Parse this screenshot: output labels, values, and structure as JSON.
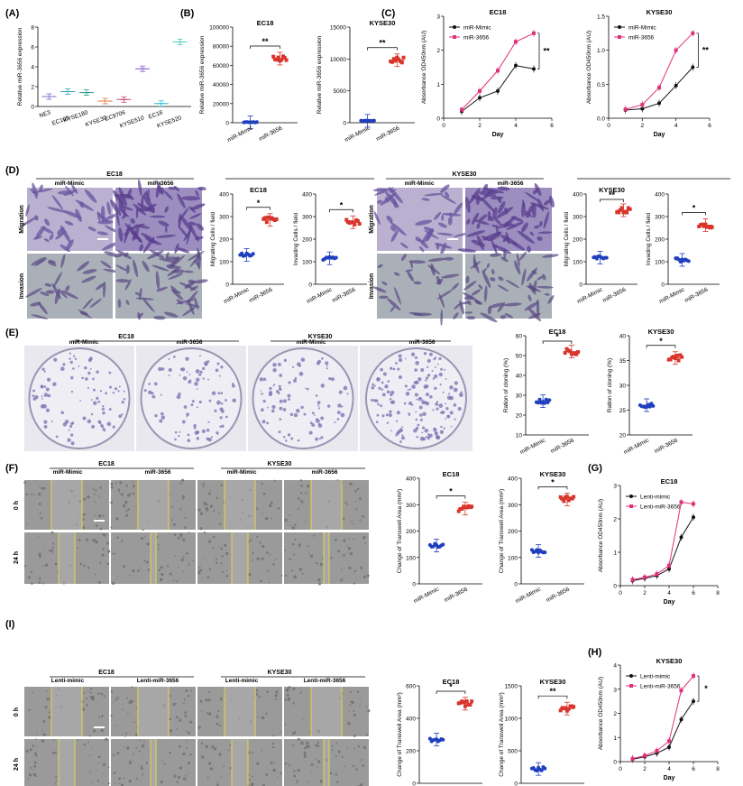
{
  "panel_letters": [
    "(A)",
    "(B)",
    "(C)",
    "(D)",
    "(E)",
    "(F)",
    "(G)",
    "(I)",
    "(H)"
  ],
  "labels": {
    "group_mimic": "miR-Mimic",
    "group_mir": "miR-3656",
    "lenti_mimic": "Lenti-mimic",
    "lenti_mir": "Lenti-miR-3656",
    "migration": "Migration",
    "invasion": "Invasion",
    "t0": "0 h",
    "t24": "24 h",
    "ec18": "EC18",
    "kyse30": "KYSE30"
  },
  "chart_data": [
    {
      "id": "A",
      "type": "scatter",
      "title": "",
      "xlabel": "",
      "ylabel": "Relative miR-3656 expression",
      "categories": [
        "NE3",
        "EC109",
        "KYSE180",
        "KYSE30",
        "EC9706",
        "KYSE510",
        "EC18",
        "KYSE520"
      ],
      "values": [
        1.0,
        1.5,
        1.4,
        0.55,
        0.7,
        3.8,
        0.3,
        6.5
      ],
      "colors": [
        "#7b68c9",
        "#2aa7b5",
        "#2e9a8c",
        "#e07a3c",
        "#c24b6d",
        "#8a5cc7",
        "#2fbfd8",
        "#45c9c0"
      ],
      "ylim": [
        0,
        8
      ],
      "yticks": [
        0,
        2,
        4,
        6,
        8
      ]
    },
    {
      "id": "B1",
      "type": "scatter",
      "title": "EC18",
      "xlabel": "",
      "ylabel": "Relative miR-3656 expression",
      "categories": [
        "miR-Mimic",
        "miR-3656"
      ],
      "values": [
        500,
        67000
      ],
      "ylim": [
        0,
        100000
      ],
      "yticks": [
        0,
        20000,
        40000,
        60000,
        80000,
        100000
      ],
      "significance": "**"
    },
    {
      "id": "B2",
      "type": "scatter",
      "title": "KYSE30",
      "xlabel": "",
      "ylabel": "Relative miR-3656 expression",
      "categories": [
        "miR-Mimic",
        "miR-3656"
      ],
      "values": [
        300,
        9800
      ],
      "ylim": [
        0,
        15000
      ],
      "yticks": [
        0,
        5000,
        10000,
        15000
      ],
      "significance": "**"
    },
    {
      "id": "C1",
      "type": "line",
      "title": "EC18",
      "xlabel": "Day",
      "ylabel": "Absorbance OD450nm (AU)",
      "x": [
        1,
        2,
        3,
        4,
        5
      ],
      "xlim": [
        0,
        6
      ],
      "xticks": [
        0,
        2,
        4,
        6
      ],
      "ylim": [
        0,
        3
      ],
      "yticks": [
        0,
        1,
        2,
        3
      ],
      "series": [
        {
          "name": "miR-Mimic",
          "values": [
            0.2,
            0.6,
            0.8,
            1.55,
            1.45
          ]
        },
        {
          "name": "miR-3656",
          "values": [
            0.25,
            0.8,
            1.4,
            2.25,
            2.5
          ]
        }
      ],
      "significance": "**",
      "legend": "top-left"
    },
    {
      "id": "C2",
      "type": "line",
      "title": "KYSE30",
      "xlabel": "Day",
      "ylabel": "Absorbance OD450nm (AU)",
      "x": [
        1,
        2,
        3,
        4,
        5
      ],
      "xlim": [
        0,
        6
      ],
      "xticks": [
        0,
        2,
        4,
        6
      ],
      "ylim": [
        0,
        1.5
      ],
      "yticks": [
        0.0,
        0.5,
        1.0,
        1.5
      ],
      "series": [
        {
          "name": "miR-Mimic",
          "values": [
            0.12,
            0.14,
            0.22,
            0.48,
            0.75
          ]
        },
        {
          "name": "miR-3656",
          "values": [
            0.13,
            0.2,
            0.45,
            1.0,
            1.25
          ]
        }
      ],
      "significance": "**",
      "legend": "top-left"
    },
    {
      "id": "D1",
      "type": "scatter",
      "title": "EC18",
      "xlabel": "",
      "ylabel": "Migrating Cells / field",
      "categories": [
        "miR-Mimic",
        "miR-3656"
      ],
      "values": [
        130,
        285
      ],
      "ylim": [
        0,
        400
      ],
      "yticks": [
        0,
        100,
        200,
        300,
        400
      ],
      "significance": "*"
    },
    {
      "id": "D2",
      "type": "scatter",
      "title": "",
      "xlabel": "",
      "ylabel": "Invading Cells / field",
      "categories": [
        "miR-Mimic",
        "miR-3656"
      ],
      "values": [
        115,
        275
      ],
      "ylim": [
        0,
        400
      ],
      "yticks": [
        0,
        100,
        200,
        300,
        400
      ],
      "significance": "*"
    },
    {
      "id": "D3",
      "type": "scatter",
      "title": "KYSE30",
      "xlabel": "",
      "ylabel": "Migrating Cells / field",
      "categories": [
        "miR-Mimic",
        "miR-3656"
      ],
      "values": [
        118,
        328
      ],
      "ylim": [
        0,
        400
      ],
      "yticks": [
        0,
        100,
        200,
        300,
        400
      ],
      "significance": "**"
    },
    {
      "id": "D4",
      "type": "scatter",
      "title": "",
      "xlabel": "",
      "ylabel": "Invading Cells / field",
      "categories": [
        "miR-Mimic",
        "miR-3656"
      ],
      "values": [
        108,
        262
      ],
      "ylim": [
        0,
        400
      ],
      "yticks": [
        0,
        100,
        200,
        300,
        400
      ],
      "significance": "*"
    },
    {
      "id": "E1",
      "type": "scatter",
      "title": "EC18",
      "xlabel": "",
      "ylabel": "Ration of cloning (%)",
      "categories": [
        "miR-Mimic",
        "miR-3656"
      ],
      "values": [
        27,
        52
      ],
      "ylim": [
        10,
        60
      ],
      "yticks": [
        10,
        20,
        30,
        40,
        50,
        60
      ],
      "significance": "*"
    },
    {
      "id": "E2",
      "type": "scatter",
      "title": "KYSE30",
      "xlabel": "",
      "ylabel": "Ration of cloning (%)",
      "categories": [
        "miR-Mimic",
        "miR-3656"
      ],
      "values": [
        26,
        35.5
      ],
      "ylim": [
        20,
        40
      ],
      "yticks": [
        20,
        25,
        30,
        35,
        40
      ],
      "significance": "*"
    },
    {
      "id": "F1",
      "type": "scatter",
      "title": "EC18",
      "xlabel": "",
      "ylabel": "Change of Transwell Area (mm²)",
      "categories": [
        "miR-Mimic",
        "miR-3656"
      ],
      "values": [
        145,
        285
      ],
      "ylim": [
        0,
        400
      ],
      "yticks": [
        0,
        100,
        200,
        300,
        400
      ],
      "significance": "*"
    },
    {
      "id": "F2",
      "type": "scatter",
      "title": "KYSE30",
      "xlabel": "",
      "ylabel": "Change of Transwell Area (mm²)",
      "categories": [
        "miR-Mimic",
        "miR-3656"
      ],
      "values": [
        125,
        320
      ],
      "ylim": [
        0,
        400
      ],
      "yticks": [
        0,
        100,
        200,
        300,
        400
      ],
      "significance": "*"
    },
    {
      "id": "G",
      "type": "line",
      "title": "EC18",
      "xlabel": "Day",
      "ylabel": "Absorbance OD450nm (AU)",
      "x": [
        1,
        2,
        3,
        4,
        5,
        6
      ],
      "xlim": [
        0,
        8
      ],
      "xticks": [
        0,
        2,
        4,
        6,
        8
      ],
      "ylim": [
        0,
        3
      ],
      "yticks": [
        0,
        1,
        2,
        3
      ],
      "series": [
        {
          "name": "Lenti-mimic",
          "values": [
            0.15,
            0.22,
            0.3,
            0.5,
            1.45,
            2.05
          ]
        },
        {
          "name": "Lenti-miR-3656",
          "values": [
            0.18,
            0.25,
            0.35,
            0.6,
            2.5,
            2.45
          ]
        }
      ],
      "legend": "top-left"
    },
    {
      "id": "I1",
      "type": "scatter",
      "title": "EC18",
      "xlabel": "",
      "ylabel": "Change of Transwell Area (mm²)",
      "categories": [
        "Lenti-mimic",
        "Lenti-miR-3656"
      ],
      "values": [
        270,
        490
      ],
      "ylim": [
        0,
        600
      ],
      "yticks": [
        0,
        200,
        400,
        600
      ],
      "significance": "*"
    },
    {
      "id": "I2",
      "type": "scatter",
      "title": "KYSE30",
      "xlabel": "",
      "ylabel": "Change of Transwell Area (mm²)",
      "categories": [
        "Lenti-mimic",
        "Lenti-miR-3656"
      ],
      "values": [
        220,
        1150
      ],
      "ylim": [
        0,
        1500
      ],
      "yticks": [
        0,
        500,
        1000,
        1500
      ],
      "significance": "**"
    },
    {
      "id": "H",
      "type": "line",
      "title": "KYSE30",
      "xlabel": "Day",
      "ylabel": "Absorbance OD450nm (AU)",
      "x": [
        1,
        2,
        3,
        4,
        5,
        6
      ],
      "xlim": [
        0,
        8
      ],
      "xticks": [
        0,
        2,
        4,
        6,
        8
      ],
      "ylim": [
        0,
        4
      ],
      "yticks": [
        0,
        1,
        2,
        3,
        4
      ],
      "series": [
        {
          "name": "Lenti-mimic",
          "values": [
            0.1,
            0.2,
            0.35,
            0.6,
            1.75,
            2.5
          ]
        },
        {
          "name": "Lenti-miR-3656",
          "values": [
            0.12,
            0.25,
            0.45,
            0.85,
            2.95,
            3.55
          ]
        }
      ],
      "significance": "*",
      "legend": "top-left"
    }
  ]
}
